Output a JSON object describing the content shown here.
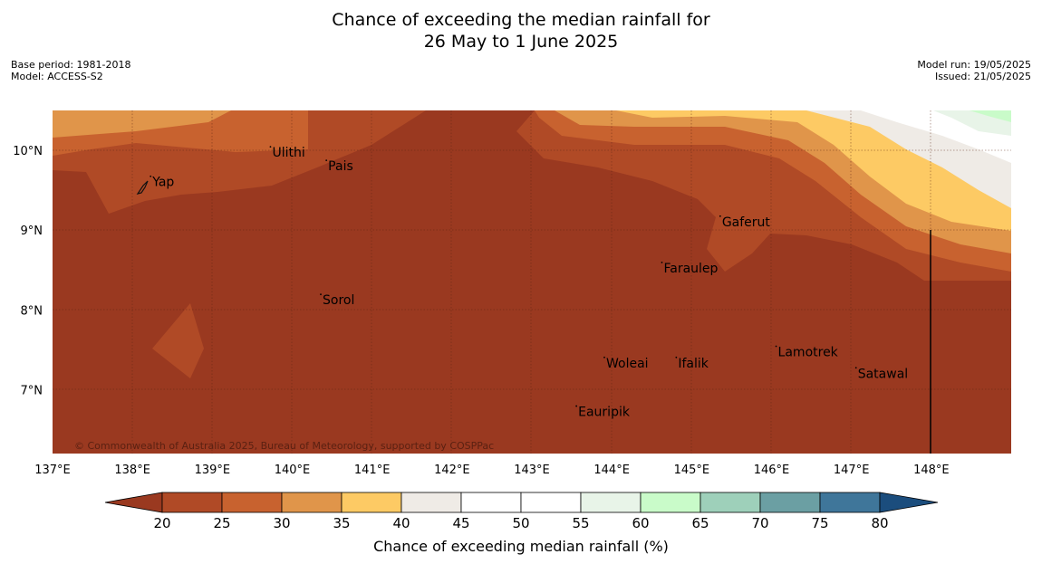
{
  "title": {
    "line1": "Chance of exceeding the median rainfall for",
    "line2": "26 May to 1 June 2025"
  },
  "meta": {
    "base_period": "Base period: 1981-2018",
    "model": "Model: ACCESS-S2",
    "model_run": "Model run: 19/05/2025",
    "issued": "Issued: 21/05/2025"
  },
  "map": {
    "lon_range": [
      137,
      149
    ],
    "lat_range": [
      6.2,
      10.5
    ],
    "lon_ticks": [
      "137°E",
      "138°E",
      "139°E",
      "140°E",
      "141°E",
      "142°E",
      "143°E",
      "144°E",
      "145°E",
      "146°E",
      "147°E",
      "148°E"
    ],
    "lat_ticks": [
      "7°N",
      "8°N",
      "9°N",
      "10°N"
    ],
    "copyright": "© Commonwealth of Australia 2025, Bureau of Meteorology, supported by COSPPac",
    "places": [
      {
        "name": "Ulithi",
        "lon": 139.75,
        "lat": 9.92
      },
      {
        "name": "Pais",
        "lon": 140.45,
        "lat": 9.75
      },
      {
        "name": "Yap",
        "lon": 138.25,
        "lat": 9.55
      },
      {
        "name": "Gaferut",
        "lon": 145.38,
        "lat": 9.05
      },
      {
        "name": "Faraulep",
        "lon": 144.65,
        "lat": 8.47
      },
      {
        "name": "Sorol",
        "lon": 140.38,
        "lat": 8.07
      },
      {
        "name": "Lamotrek",
        "lon": 146.08,
        "lat": 7.42
      },
      {
        "name": "Satawal",
        "lon": 147.08,
        "lat": 7.15
      },
      {
        "name": "Woleai",
        "lon": 143.93,
        "lat": 7.28
      },
      {
        "name": "Ifalik",
        "lon": 144.83,
        "lat": 7.28
      },
      {
        "name": "Eauripik",
        "lon": 143.58,
        "lat": 6.67
      }
    ]
  },
  "colorbar": {
    "label": "Chance of exceeding median rainfall (%)",
    "ticks": [
      "20",
      "25",
      "30",
      "35",
      "40",
      "45",
      "50",
      "55",
      "60",
      "65",
      "70",
      "75",
      "80"
    ],
    "colors": [
      "#9a3920",
      "#b04a26",
      "#c8622f",
      "#e0954a",
      "#fdca64",
      "#efebe6",
      "#ffffff",
      "#ffffff",
      "#e8f4e8",
      "#c9fbc9",
      "#9ed0ba",
      "#6b9fa3",
      "#3f769a",
      "#1b4d7d"
    ]
  }
}
